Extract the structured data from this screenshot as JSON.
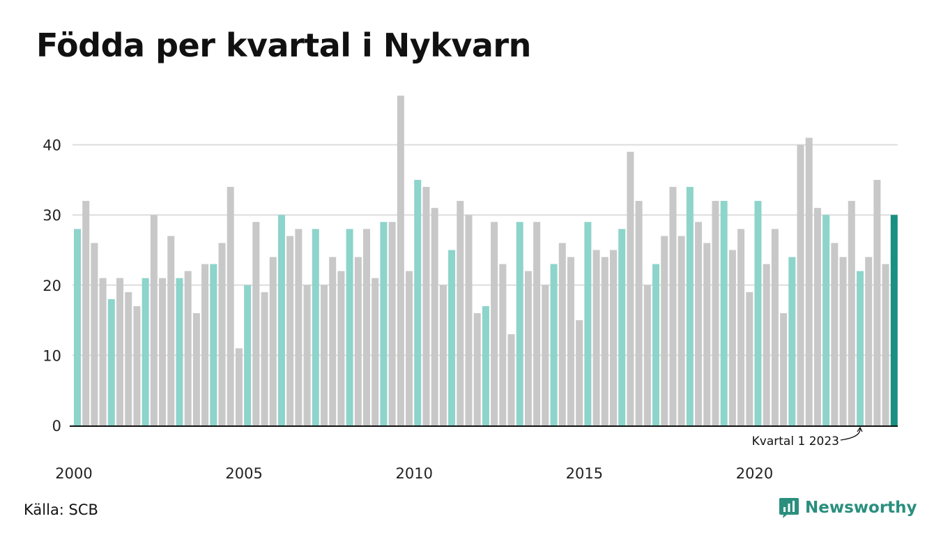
{
  "title": "Födda per kvartal i Nykvarn",
  "source": "Källa: SCB",
  "logo": {
    "text": "Newsworthy",
    "icon": "newsworthy-bar-chart-icon"
  },
  "colors": {
    "q1": "#8dd4cb",
    "other": "#c8c8c8",
    "latest": "#1a8f82",
    "grid": "#dddddd",
    "axis": "#111111"
  },
  "chart_data": {
    "type": "bar",
    "title": "Födda per kvartal i Nykvarn",
    "xlabel": "",
    "ylabel": "",
    "ylim": [
      0,
      47
    ],
    "yticks": [
      0,
      10,
      20,
      30,
      40
    ],
    "xtick_labels": [
      "2000",
      "2005",
      "2010",
      "2015",
      "2020"
    ],
    "grid": true,
    "start": {
      "year": 2000,
      "quarter": 1
    },
    "highlight": "Q1 bars in teal, latest bar dark teal",
    "annotation": {
      "text": "Kvartal 1 2023",
      "year": 2023,
      "quarter": 1
    },
    "categories": [
      "2000 Q1",
      "2000 Q2",
      "2000 Q3",
      "2000 Q4",
      "2001 Q1",
      "2001 Q2",
      "2001 Q3",
      "2001 Q4",
      "2002 Q1",
      "2002 Q2",
      "2002 Q3",
      "2002 Q4",
      "2003 Q1",
      "2003 Q2",
      "2003 Q3",
      "2003 Q4",
      "2004 Q1",
      "2004 Q2",
      "2004 Q3",
      "2004 Q4",
      "2005 Q1",
      "2005 Q2",
      "2005 Q3",
      "2005 Q4",
      "2006 Q1",
      "2006 Q2",
      "2006 Q3",
      "2006 Q4",
      "2007 Q1",
      "2007 Q2",
      "2007 Q3",
      "2007 Q4",
      "2008 Q1",
      "2008 Q2",
      "2008 Q3",
      "2008 Q4",
      "2009 Q1",
      "2009 Q2",
      "2009 Q3",
      "2009 Q4",
      "2010 Q1",
      "2010 Q2",
      "2010 Q3",
      "2010 Q4",
      "2011 Q1",
      "2011 Q2",
      "2011 Q3",
      "2011 Q4",
      "2012 Q1",
      "2012 Q2",
      "2012 Q3",
      "2012 Q4",
      "2013 Q1",
      "2013 Q2",
      "2013 Q3",
      "2013 Q4",
      "2014 Q1",
      "2014 Q2",
      "2014 Q3",
      "2014 Q4",
      "2015 Q1",
      "2015 Q2",
      "2015 Q3",
      "2015 Q4",
      "2016 Q1",
      "2016 Q2",
      "2016 Q3",
      "2016 Q4",
      "2017 Q1",
      "2017 Q2",
      "2017 Q3",
      "2017 Q4",
      "2018 Q1",
      "2018 Q2",
      "2018 Q3",
      "2018 Q4",
      "2019 Q1",
      "2019 Q2",
      "2019 Q3",
      "2019 Q4",
      "2020 Q1",
      "2020 Q2",
      "2020 Q3",
      "2020 Q4",
      "2021 Q1",
      "2021 Q2",
      "2021 Q3",
      "2021 Q4",
      "2022 Q1",
      "2022 Q2",
      "2022 Q3",
      "2022 Q4",
      "2023 Q1",
      "2023 Q2",
      "2023 Q3",
      "2023 Q4",
      "2024 Q1"
    ],
    "values": [
      28,
      32,
      26,
      21,
      18,
      21,
      19,
      17,
      21,
      30,
      21,
      27,
      21,
      22,
      16,
      23,
      23,
      26,
      34,
      11,
      20,
      29,
      19,
      24,
      30,
      27,
      28,
      20,
      28,
      20,
      24,
      22,
      28,
      24,
      28,
      21,
      29,
      29,
      47,
      22,
      35,
      34,
      31,
      20,
      25,
      32,
      30,
      16,
      17,
      29,
      23,
      13,
      29,
      22,
      29,
      20,
      23,
      26,
      24,
      15,
      29,
      25,
      24,
      25,
      28,
      39,
      32,
      20,
      23,
      27,
      34,
      27,
      34,
      29,
      26,
      32,
      32,
      25,
      28,
      19,
      32,
      23,
      28,
      16,
      24,
      40,
      41,
      31,
      30,
      26,
      24,
      32,
      22,
      24,
      35,
      23,
      30
    ]
  }
}
